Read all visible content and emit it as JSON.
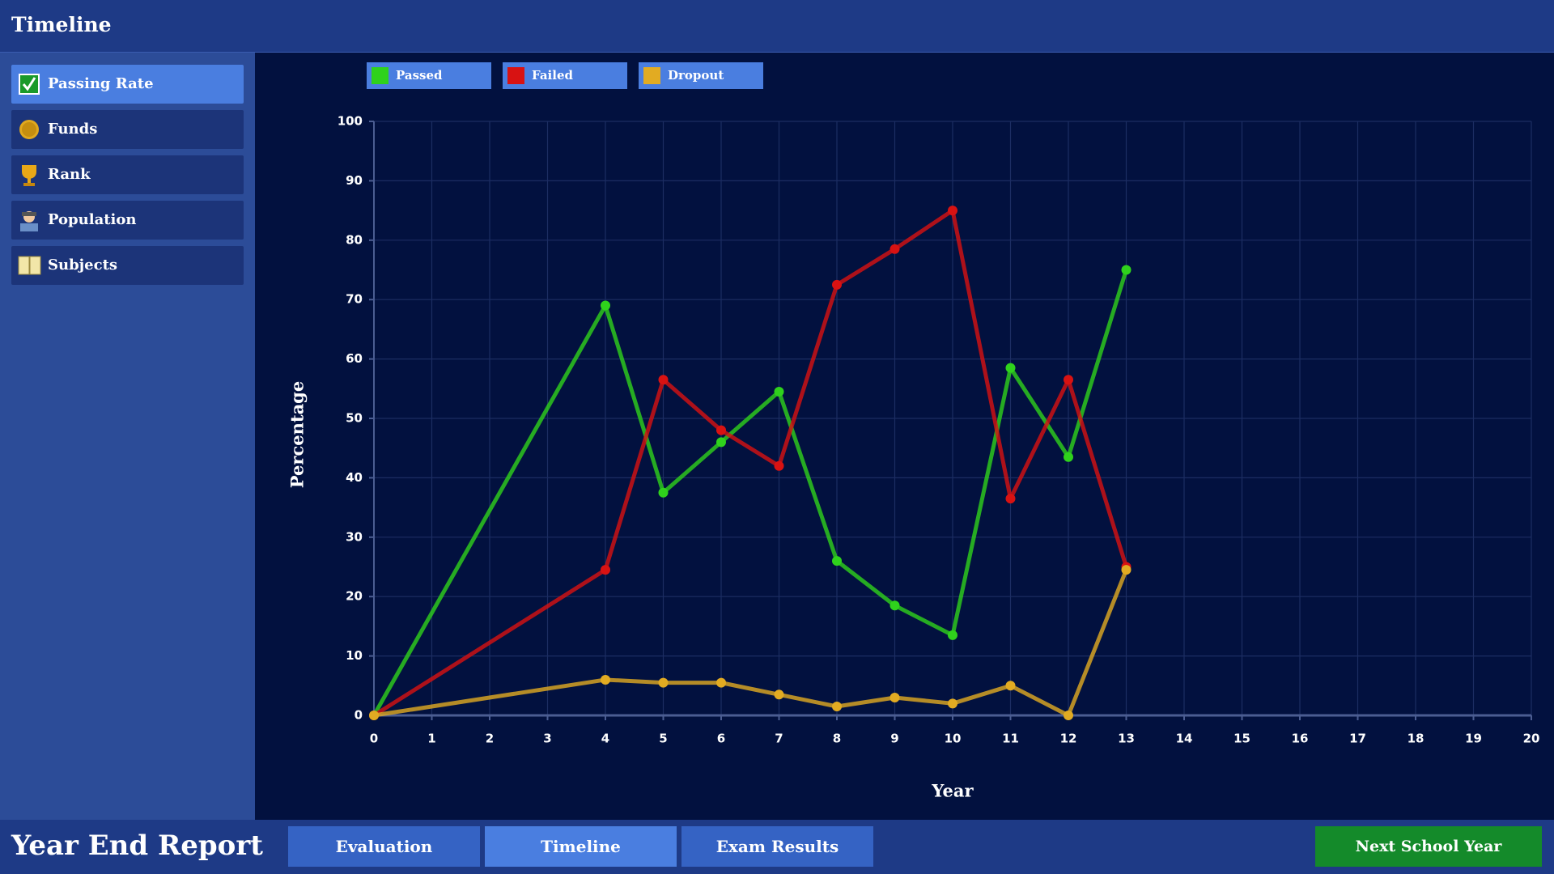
{
  "header": {
    "title": "Timeline"
  },
  "sidebar": {
    "items": [
      "Passing Rate",
      "Funds",
      "Rank",
      "Population",
      "Subjects"
    ]
  },
  "footer": {
    "title": "Year End Report",
    "tabs": [
      "Evaluation",
      "Timeline",
      "Exam Results"
    ],
    "button": "Next School Year"
  },
  "chart_data": {
    "type": "line",
    "xlabel": "Year",
    "ylabel": "Percentage",
    "x": [
      0,
      4,
      5,
      6,
      7,
      8,
      9,
      10,
      11,
      12,
      13
    ],
    "series": [
      {
        "name": "Passed",
        "color": "#2fd21c",
        "values": [
          0,
          69,
          37.5,
          46,
          54.5,
          26,
          18.5,
          13.5,
          58.5,
          43.5,
          75
        ]
      },
      {
        "name": "Failed",
        "color": "#d81212",
        "values": [
          0,
          24.5,
          56.5,
          48,
          42,
          72.5,
          78.5,
          85,
          36.5,
          56.5,
          25
        ]
      },
      {
        "name": "Dropout",
        "color": "#e2ab22",
        "values": [
          0,
          6,
          5.5,
          5.5,
          3.5,
          1.5,
          3,
          2,
          5,
          0,
          24.5
        ]
      }
    ],
    "xlim": [
      0,
      20
    ],
    "xticks": [
      0,
      1,
      2,
      3,
      4,
      5,
      6,
      7,
      8,
      9,
      10,
      11,
      12,
      13,
      14,
      15,
      16,
      17,
      18,
      19,
      20
    ],
    "ylim": [
      0,
      100
    ],
    "yticks": [
      0,
      10,
      20,
      30,
      40,
      50,
      60,
      70,
      80,
      90,
      100
    ],
    "grid": true
  }
}
